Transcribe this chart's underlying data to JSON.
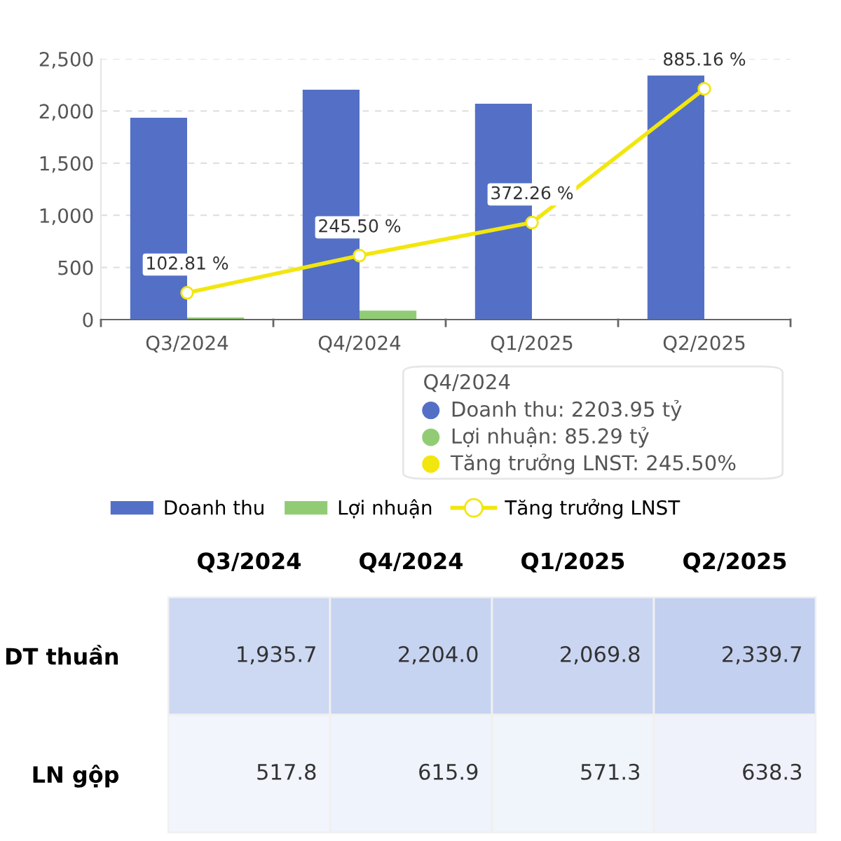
{
  "chart_data": [
    {
      "type": "bar",
      "categories": [
        "Q3/2024",
        "Q4/2024",
        "Q1/2025",
        "Q2/2025"
      ],
      "ylim": [
        0,
        2500
      ],
      "yticks": [
        0,
        500,
        {
          "value": 1000,
          "label": "1,000"
        },
        {
          "value": 1500,
          "label": "1,500"
        },
        {
          "value": 2000,
          "label": "2,000"
        },
        {
          "value": 2500,
          "label": "2,500"
        }
      ],
      "y2lim": [
        0,
        1000
      ],
      "grid": "y",
      "legend": "bottom",
      "marker": "circle",
      "series": [
        {
          "name": "Doanh thu",
          "color": "#5470c6",
          "values": [
            1936,
            2204,
            2070,
            2340
          ]
        },
        {
          "name": "Lợi nhuận",
          "color": "#91cc75",
          "values": [
            20,
            85,
            null,
            null
          ]
        },
        {
          "name": "Tăng trưởng LNST",
          "type": "line",
          "axis": "y2",
          "color": "#f2e60f",
          "values": [
            102.81,
            245.5,
            372.26,
            885.16
          ],
          "value_labels": [
            "102.81 %",
            "245.50 %",
            "372.26 %",
            "885.16 %"
          ]
        }
      ],
      "annotations": [
        "Q4/2024",
        "Doanh thu: 2203.95 tỷ",
        "Lợi nhuận: 85.29 tỷ",
        "Tăng trưởng LNST: 245.50%"
      ]
    },
    {
      "type": "heatmap",
      "categories": [
        "Q3/2024",
        "Q4/2024",
        "Q1/2025",
        "Q2/2025"
      ],
      "y_categories": [
        "DT thuần",
        "LN gộp"
      ],
      "cells": [
        [
          1935.7,
          2204.0,
          2069.8,
          2339.7
        ],
        [
          517.8,
          615.9,
          571.3,
          638.3
        ]
      ],
      "cell_labels": [
        [
          "1,935.7",
          "2,204.0",
          "2,069.8",
          "2,339.7"
        ],
        [
          "517.8",
          "615.9",
          "571.3",
          "638.3"
        ]
      ]
    }
  ]
}
